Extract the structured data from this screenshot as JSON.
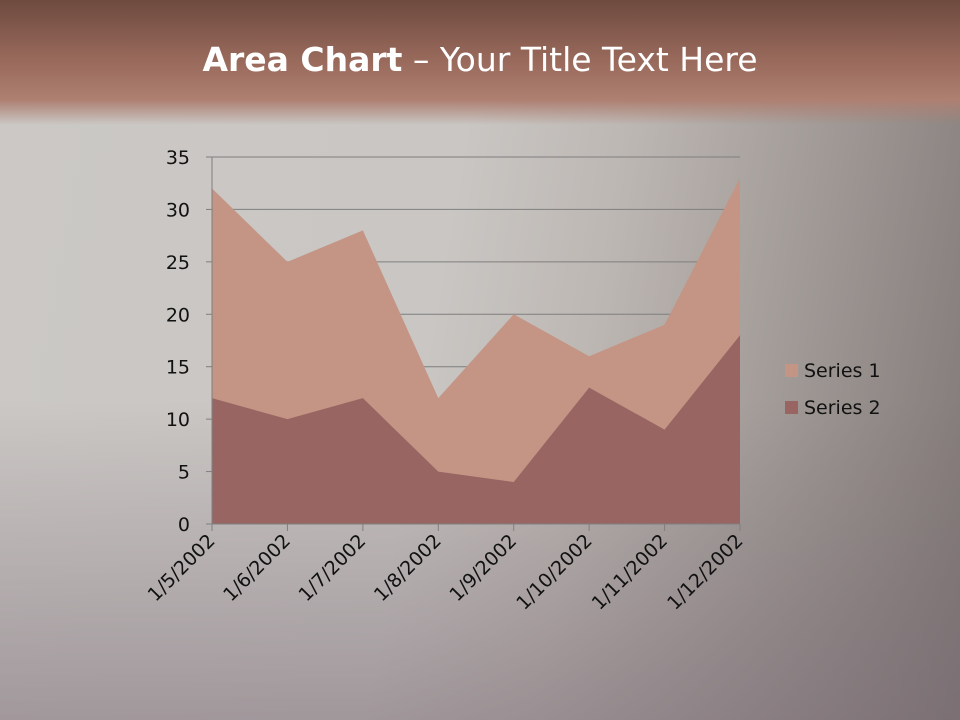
{
  "slide": {
    "title_bold": "Area Chart",
    "title_rest": " – Your Title Text Here"
  },
  "chart_data": {
    "type": "area",
    "title": "",
    "xlabel": "",
    "ylabel": "",
    "categories": [
      "1/5/2002",
      "1/6/2002",
      "1/7/2002",
      "1/8/2002",
      "1/9/2002",
      "1/10/2002",
      "1/11/2002",
      "1/12/2002"
    ],
    "series": [
      {
        "name": "Series 1",
        "values": [
          32,
          25,
          28,
          12,
          20,
          16,
          19,
          33
        ],
        "color": "#c49584"
      },
      {
        "name": "Series 2",
        "values": [
          12,
          10,
          12,
          5,
          4,
          13,
          9,
          18
        ],
        "color": "#986563"
      }
    ],
    "ylim": [
      0,
      35
    ],
    "yticks": [
      0,
      5,
      10,
      15,
      20,
      25,
      30,
      35
    ],
    "grid": true,
    "legend": "right"
  }
}
